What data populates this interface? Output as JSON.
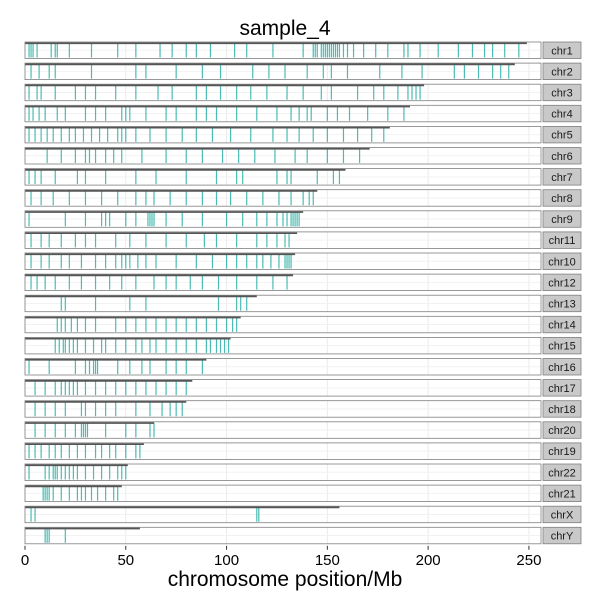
{
  "chart_data": {
    "type": "bar",
    "title": "sample_4",
    "xlabel": "chromosome position/Mb",
    "ylabel": "",
    "xlim": [
      0,
      256
    ],
    "x_ticks": [
      0,
      50,
      100,
      150,
      200,
      250
    ],
    "grid": true,
    "facet_strip_position": "right",
    "colors": {
      "feature": "#2bb0a6",
      "chrom_line": "#555555",
      "strip_fill": "#c9c9c9",
      "panel_border": "#7f7f7f",
      "grid": "#ebebeb"
    },
    "chromosomes": [
      {
        "label": "chr1",
        "length": 249
      },
      {
        "label": "chr2",
        "length": 243
      },
      {
        "label": "chr3",
        "length": 198
      },
      {
        "label": "chr4",
        "length": 191
      },
      {
        "label": "chr5",
        "length": 181
      },
      {
        "label": "chr6",
        "length": 171
      },
      {
        "label": "chr7",
        "length": 159
      },
      {
        "label": "chr8",
        "length": 145
      },
      {
        "label": "chr9",
        "length": 138
      },
      {
        "label": "chr11",
        "length": 135
      },
      {
        "label": "chr10",
        "length": 134
      },
      {
        "label": "chr12",
        "length": 133
      },
      {
        "label": "chr13",
        "length": 115
      },
      {
        "label": "chr14",
        "length": 107
      },
      {
        "label": "chr15",
        "length": 102
      },
      {
        "label": "chr16",
        "length": 90
      },
      {
        "label": "chr17",
        "length": 83
      },
      {
        "label": "chr18",
        "length": 80
      },
      {
        "label": "chr20",
        "length": 64
      },
      {
        "label": "chr19",
        "length": 59
      },
      {
        "label": "chr22",
        "length": 51
      },
      {
        "label": "chr21",
        "length": 48
      },
      {
        "label": "chrX",
        "length": 156
      },
      {
        "label": "chrY",
        "length": 57
      }
    ],
    "features": [
      [
        2,
        3,
        4,
        6,
        13,
        15,
        16,
        22,
        33,
        46,
        55,
        67,
        73,
        80,
        85,
        92,
        104,
        110,
        123,
        138,
        143,
        144,
        145,
        147,
        148,
        149,
        150,
        151,
        152,
        153,
        154,
        155,
        156,
        158,
        160,
        163,
        168,
        174,
        180,
        188,
        190,
        196,
        205,
        215,
        222,
        228,
        232,
        238,
        245
      ],
      [
        3,
        7,
        12,
        15,
        33,
        55,
        60,
        75,
        88,
        97,
        113,
        121,
        129,
        140,
        148,
        152,
        160,
        176,
        187,
        197,
        213,
        218,
        225,
        232,
        236,
        240
      ],
      [
        2,
        6,
        8,
        15,
        25,
        30,
        35,
        45,
        55,
        66,
        73,
        85,
        90,
        97,
        105,
        112,
        120,
        130,
        138,
        147,
        152,
        165,
        173,
        178,
        185,
        190,
        192,
        194,
        196
      ],
      [
        2,
        4,
        7,
        10,
        16,
        20,
        30,
        35,
        40,
        48,
        50,
        52,
        60,
        70,
        75,
        85,
        90,
        95,
        105,
        115,
        125,
        132,
        136,
        140,
        142,
        150,
        155,
        161,
        170,
        180,
        188
      ],
      [
        2,
        5,
        8,
        11,
        14,
        18,
        22,
        25,
        29,
        33,
        37,
        41,
        46,
        48,
        50,
        55,
        62,
        70,
        78,
        85,
        93,
        102,
        112,
        123,
        130,
        136,
        143,
        150,
        158,
        165,
        172,
        178
      ],
      [
        11,
        18,
        25,
        30,
        32,
        35,
        40,
        44,
        48,
        58,
        70,
        80,
        88,
        98,
        106,
        114,
        124,
        134,
        140,
        150,
        158,
        166
      ],
      [
        2,
        5,
        8,
        15,
        26,
        30,
        40,
        55,
        65,
        80,
        95,
        105,
        108,
        125,
        130,
        132,
        145,
        153,
        156
      ],
      [
        3,
        8,
        14,
        22,
        30,
        38,
        46,
        55,
        60,
        64,
        72,
        80,
        88,
        95,
        102,
        110,
        118,
        126,
        132,
        138,
        141,
        143
      ],
      [
        2,
        20,
        30,
        38,
        40,
        42,
        50,
        55,
        61,
        62,
        63,
        64,
        70,
        78,
        88,
        100,
        108,
        115,
        120,
        125,
        128,
        130,
        132,
        133,
        134,
        135,
        136
      ],
      [
        3,
        8,
        12,
        18,
        25,
        30,
        35,
        45,
        52,
        60,
        70,
        80,
        89,
        95,
        105,
        115,
        120,
        125,
        129,
        131
      ],
      [
        3,
        8,
        12,
        18,
        22,
        28,
        35,
        40,
        45,
        48,
        50,
        52,
        56,
        60,
        65,
        75,
        85,
        93,
        100,
        105,
        110,
        115,
        118,
        122,
        126,
        129,
        130,
        131,
        132
      ],
      [
        3,
        6,
        10,
        15,
        22,
        28,
        35,
        42,
        48,
        55,
        64,
        70,
        75,
        82,
        88,
        96,
        105,
        115,
        123,
        130
      ],
      [
        18,
        20,
        35,
        52,
        60,
        96,
        105,
        107,
        110
      ],
      [
        16,
        18,
        20,
        23,
        26,
        30,
        35,
        45,
        50,
        55,
        60,
        65,
        70,
        75,
        80,
        85,
        90,
        95,
        100,
        103,
        105
      ],
      [
        15,
        17,
        19,
        20,
        22,
        24,
        26,
        30,
        34,
        38,
        40,
        45,
        50,
        55,
        58,
        62,
        65,
        70,
        75,
        80,
        85,
        90,
        92,
        95,
        97,
        99,
        101
      ],
      [
        2,
        12,
        25,
        30,
        32,
        34,
        35,
        36,
        46,
        52,
        58,
        62,
        70,
        75,
        80,
        88
      ],
      [
        5,
        10,
        15,
        18,
        20,
        22,
        24,
        26,
        30,
        35,
        40,
        45,
        50,
        55,
        60,
        65,
        70,
        75,
        80
      ],
      [
        5,
        10,
        15,
        20,
        28,
        30,
        35,
        40,
        45,
        55,
        62,
        68,
        72,
        75,
        78
      ],
      [
        5,
        10,
        15,
        20,
        25,
        28,
        29,
        30,
        31,
        40,
        50,
        55,
        62,
        64
      ],
      [
        2,
        5,
        8,
        12,
        15,
        18,
        22,
        26,
        30,
        35,
        38,
        42,
        45,
        50,
        55,
        57
      ],
      [
        2,
        10,
        12,
        14,
        15,
        16,
        18,
        20,
        22,
        24,
        26,
        30,
        34,
        38,
        42,
        46,
        48,
        50
      ],
      [
        9,
        10,
        11,
        12,
        14,
        18,
        22,
        26,
        28,
        30,
        33,
        36,
        40,
        44,
        46
      ],
      [
        3,
        5,
        115,
        116
      ],
      [
        10,
        11,
        12,
        20
      ]
    ]
  }
}
